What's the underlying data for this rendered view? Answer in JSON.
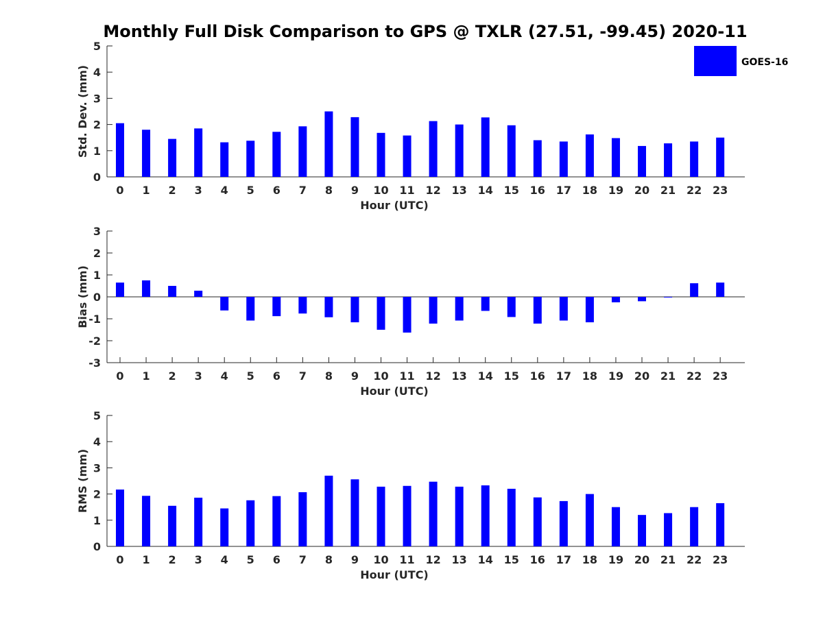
{
  "title": "Monthly Full Disk Comparison to GPS @ TXLR (27.51, -99.45) 2020-11",
  "legend": {
    "label": "GOES-16",
    "color": "#0000ff",
    "placement": "top-right"
  },
  "chart_data": [
    {
      "type": "bar",
      "xlabel": "Hour (UTC)",
      "ylabel": "Std. Dev. (mm)",
      "ylim": [
        0,
        5
      ],
      "yticks": [
        "0",
        "1",
        "2",
        "3",
        "4",
        "5"
      ],
      "categories": [
        "0",
        "1",
        "2",
        "3",
        "4",
        "5",
        "6",
        "7",
        "8",
        "9",
        "10",
        "11",
        "12",
        "13",
        "14",
        "15",
        "16",
        "17",
        "18",
        "19",
        "20",
        "21",
        "22",
        "23"
      ],
      "series": [
        {
          "name": "GOES-16",
          "color": "#0000ff",
          "values": [
            2.05,
            1.8,
            1.45,
            1.85,
            1.32,
            1.38,
            1.72,
            1.93,
            2.5,
            2.28,
            1.68,
            1.58,
            2.13,
            2.0,
            2.27,
            1.97,
            1.4,
            1.35,
            1.62,
            1.48,
            1.18,
            1.28,
            1.35,
            1.5
          ]
        }
      ]
    },
    {
      "type": "bar",
      "xlabel": "Hour (UTC)",
      "ylabel": "Bias (mm)",
      "ylim": [
        -3,
        3
      ],
      "yticks": [
        "-3",
        "-2",
        "-1",
        "0",
        "1",
        "2",
        "3"
      ],
      "categories": [
        "0",
        "1",
        "2",
        "3",
        "4",
        "5",
        "6",
        "7",
        "8",
        "9",
        "10",
        "11",
        "12",
        "13",
        "14",
        "15",
        "16",
        "17",
        "18",
        "19",
        "20",
        "21",
        "22",
        "23"
      ],
      "series": [
        {
          "name": "GOES-16",
          "color": "#0000ff",
          "values": [
            0.65,
            0.75,
            0.5,
            0.28,
            -0.62,
            -1.08,
            -0.88,
            -0.76,
            -0.93,
            -1.16,
            -1.5,
            -1.63,
            -1.22,
            -1.08,
            -0.64,
            -0.92,
            -1.22,
            -1.08,
            -1.16,
            -0.25,
            -0.2,
            -0.03,
            0.62,
            0.65
          ]
        }
      ]
    },
    {
      "type": "bar",
      "xlabel": "Hour (UTC)",
      "ylabel": "RMS (mm)",
      "ylim": [
        0,
        5
      ],
      "yticks": [
        "0",
        "1",
        "2",
        "3",
        "4",
        "5"
      ],
      "categories": [
        "0",
        "1",
        "2",
        "3",
        "4",
        "5",
        "6",
        "7",
        "8",
        "9",
        "10",
        "11",
        "12",
        "13",
        "14",
        "15",
        "16",
        "17",
        "18",
        "19",
        "20",
        "21",
        "22",
        "23"
      ],
      "series": [
        {
          "name": "GOES-16",
          "color": "#0000ff",
          "values": [
            2.17,
            1.93,
            1.55,
            1.86,
            1.45,
            1.76,
            1.92,
            2.07,
            2.7,
            2.56,
            2.28,
            2.31,
            2.47,
            2.28,
            2.33,
            2.2,
            1.87,
            1.73,
            2.0,
            1.5,
            1.2,
            1.27,
            1.5,
            1.65
          ]
        }
      ]
    }
  ]
}
